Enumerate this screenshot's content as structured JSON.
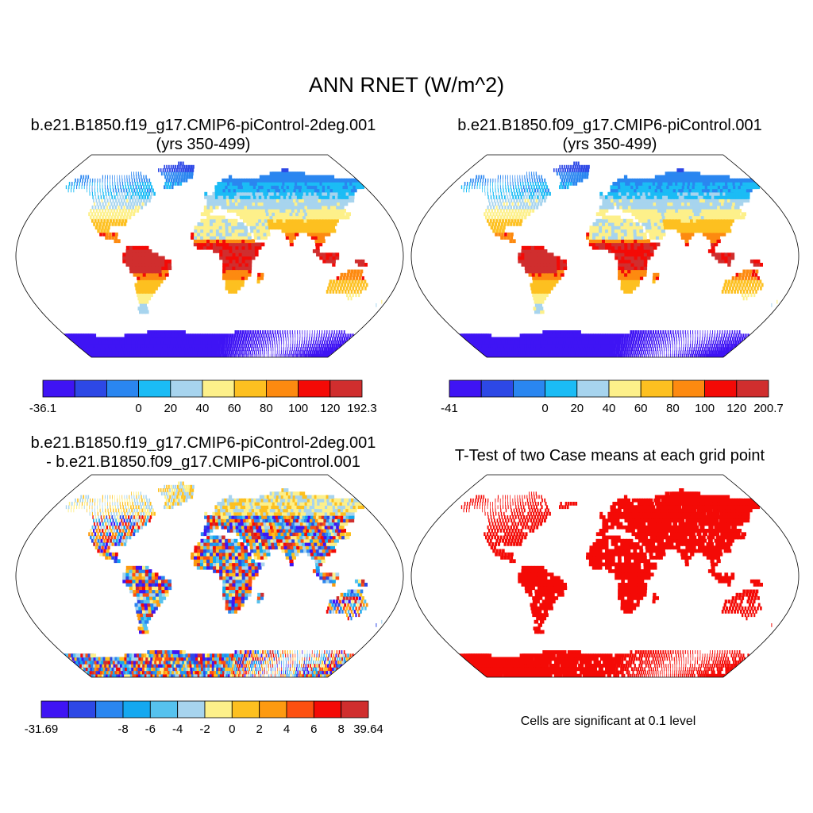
{
  "title": "ANN RNET (W/m^2)",
  "land_color": "#ffffff",
  "panels": [
    {
      "id": "case1",
      "title_line1": "b.e21.B1850.f19_g17.CMIP6-piControl-2deg.001",
      "title_line2": "(yrs 350-499)",
      "field": "mean",
      "colors": [
        "#3f14f4",
        "#2d48e6",
        "#2a86f0",
        "#1bbcf5",
        "#a7d4ee",
        "#fdf08a",
        "#fdc020",
        "#fd8a10",
        "#f40a06",
        "#d02e2e"
      ],
      "tick_labels": [
        "-36.1",
        "0",
        "20",
        "40",
        "60",
        "80",
        "100",
        "120",
        "192.3"
      ]
    },
    {
      "id": "case2",
      "title_line1": "b.e21.B1850.f09_g17.CMIP6-piControl.001",
      "title_line2": "(yrs 350-499)",
      "field": "mean",
      "colors": [
        "#3f14f4",
        "#2d48e6",
        "#2a86f0",
        "#1bbcf5",
        "#a7d4ee",
        "#fdf08a",
        "#fdc020",
        "#fd8a10",
        "#f40a06",
        "#d02e2e"
      ],
      "tick_labels": [
        "-41",
        "0",
        "20",
        "40",
        "60",
        "80",
        "100",
        "120",
        "200.7"
      ]
    },
    {
      "id": "diff",
      "title_line1": "b.e21.B1850.f19_g17.CMIP6-piControl-2deg.001",
      "title_line2": "- b.e21.B1850.f09_g17.CMIP6-piControl.001",
      "field": "diff",
      "colors": [
        "#3f14f4",
        "#2d48e6",
        "#2a86f0",
        "#14a8f0",
        "#56c2ee",
        "#a7d4ee",
        "#fdf08a",
        "#fdc020",
        "#fd9a10",
        "#fd5010",
        "#f40a06",
        "#d02e2e"
      ],
      "tick_labels": [
        "-31.69",
        "-8",
        "-6",
        "-4",
        "-2",
        "0",
        "2",
        "4",
        "6",
        "8",
        "39.64"
      ]
    },
    {
      "id": "ttest",
      "title_line1": "T-Test of two Case means at each grid point",
      "title_line2": "",
      "field": "ttest",
      "colors": [
        "#f40a06"
      ],
      "tick_labels": []
    }
  ],
  "ttest_note": "Cells are significant at 0.1 level"
}
